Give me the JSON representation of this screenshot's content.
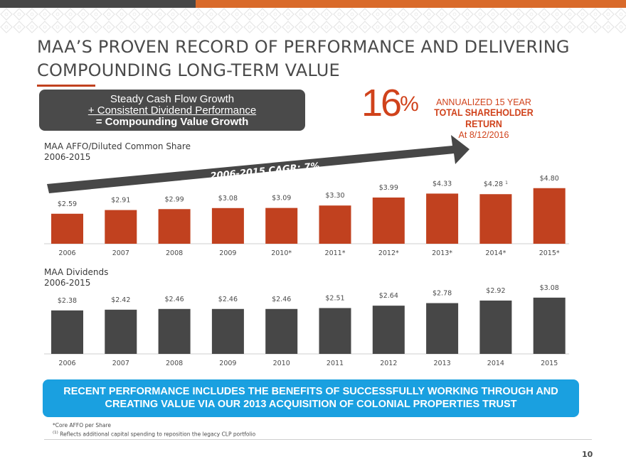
{
  "title": {
    "line1": "MAA’S PROVEN RECORD OF PERFORMANCE AND DELIVERING",
    "line2": "COMPOUNDING LONG-TERM VALUE"
  },
  "callout": {
    "line1": "Steady Cash Flow Growth",
    "line2": "+ Consistent Dividend Performance",
    "line3": "= Compounding Value Growth"
  },
  "highlight": {
    "number": "16",
    "percent_sign": "%",
    "line1": "ANNUALIZED 15 YEAR",
    "line2": "TOTAL SHAREHOLDER RETURN",
    "line3": "At 8/12/2016"
  },
  "banner": {
    "line1": "RECENT PERFORMANCE INCLUDES THE BENEFITS OF SUCCESSFULLY WORKING THROUGH AND",
    "line2": "CREATING VALUE VIA OUR 2013 ACQUISITION OF COLONIAL PROPERTIES TRUST"
  },
  "footnotes": {
    "note1": "*Core AFFO per Share",
    "note2_marker": "(1)",
    "note2": " Reflects additional capital spending to reposition the legacy CLP portfolio"
  },
  "page_number": "10",
  "colors": {
    "affo_bar": "#c1411f",
    "dividend_bar": "#474747",
    "accent": "#d0421b",
    "banner": "#1aa0e0"
  },
  "chart_data": [
    {
      "type": "bar",
      "title_line1": "MAA AFFO/Diluted Common Share",
      "title_line2": "2006-2015",
      "annotation": "2006-2015 CAGR: 7%",
      "categories": [
        "2006",
        "2007",
        "2008",
        "2009",
        "2010*",
        "2011*",
        "2012*",
        "2013*",
        "2014*",
        "2015*"
      ],
      "values": [
        2.59,
        2.91,
        2.99,
        3.08,
        3.09,
        3.3,
        3.99,
        4.33,
        4.28,
        4.8
      ],
      "labels": [
        "$2.59",
        "$2.91",
        "$2.99",
        "$3.08",
        "$3.09",
        "$3.30",
        "$3.99",
        "$4.33",
        "$4.28",
        "$4.80"
      ],
      "label_superscripts": [
        "",
        "",
        "",
        "",
        "",
        "",
        "",
        "",
        "1",
        ""
      ],
      "ylim": [
        0,
        5.5
      ]
    },
    {
      "type": "bar",
      "title_line1": "MAA Dividends",
      "title_line2": "2006-2015",
      "categories": [
        "2006",
        "2007",
        "2008",
        "2009",
        "2010",
        "2011",
        "2012",
        "2013",
        "2014",
        "2015"
      ],
      "values": [
        2.38,
        2.42,
        2.46,
        2.46,
        2.46,
        2.51,
        2.64,
        2.78,
        2.92,
        3.08
      ],
      "labels": [
        "$2.38",
        "$2.42",
        "$2.46",
        "$2.46",
        "$2.46",
        "$2.51",
        "$2.64",
        "$2.78",
        "$2.92",
        "$3.08"
      ],
      "ylim": [
        0,
        3.5
      ]
    }
  ]
}
